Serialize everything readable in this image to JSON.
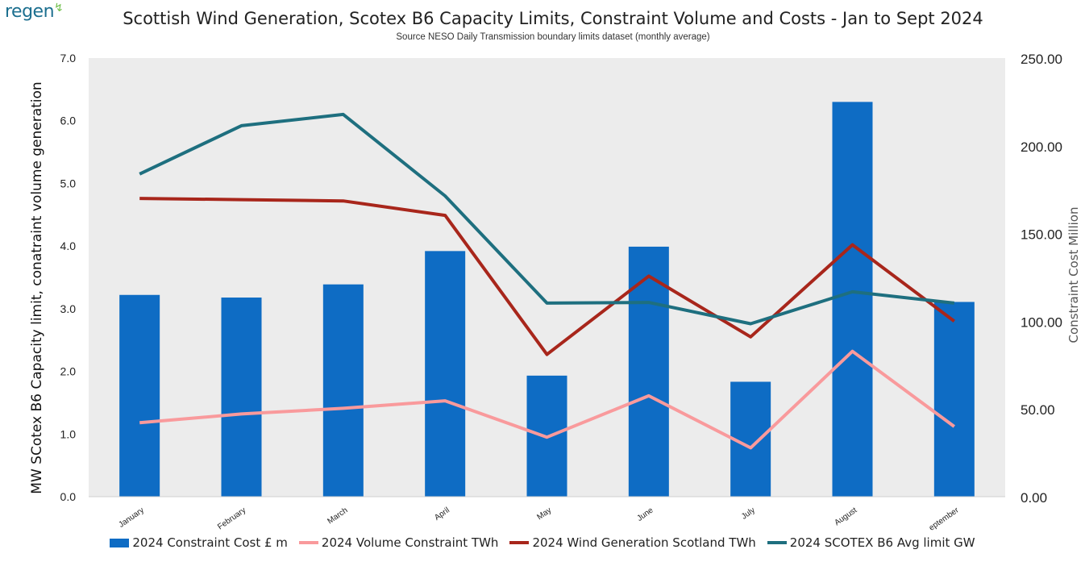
{
  "logo": {
    "text": "regen",
    "swirl": "↯"
  },
  "chart_data": {
    "type": "bar+line",
    "title": "Scottish Wind Generation, Scotex B6 Capacity Limits, Constraint Volume and Costs  - Jan to Sept 2024",
    "subtitle": "Source NESO Daily Transmission boundary limits dataset (monthly average)",
    "ylabel": "MW SCotex B6 Capacity limit, conatraint volume generation",
    "y2label": "Constraint Cost Million",
    "ylim": [
      0,
      7
    ],
    "y2lim": [
      0,
      250
    ],
    "yticks": [
      "0.0",
      "1.0",
      "2.0",
      "3.0",
      "4.0",
      "5.0",
      "6.0",
      "7.0"
    ],
    "y2ticks": [
      "0.00",
      "50.00",
      "100.00",
      "150.00",
      "200.00",
      "250.00"
    ],
    "categories": [
      "January",
      "February",
      "March",
      "April",
      "May",
      "June",
      "July",
      "August",
      "eptember"
    ],
    "bar_series": {
      "name": "2024 Constraint Cost £ m",
      "axis": "right",
      "color": "#0e6cc4",
      "values": [
        115,
        113.5,
        121,
        140,
        69,
        142.5,
        65.5,
        225,
        111
      ]
    },
    "line_series": [
      {
        "name": "2024 Volume Constraint TWh",
        "color": "#f99a9c",
        "values": [
          1.18,
          1.32,
          1.41,
          1.53,
          0.95,
          1.61,
          0.78,
          2.32,
          1.12
        ]
      },
      {
        "name": "2024 Wind Generation Scotland TWh",
        "color": "#a8261b",
        "values": [
          4.76,
          4.74,
          4.72,
          4.49,
          2.27,
          3.52,
          2.55,
          4.02,
          2.8
        ]
      },
      {
        "name": "2024 SCOTEX B6 Avg limit GW",
        "color": "#1e6f7f",
        "values": [
          5.15,
          5.92,
          6.1,
          4.8,
          3.09,
          3.1,
          2.76,
          3.27,
          3.09
        ]
      }
    ],
    "legend_position": "bottom",
    "grid": false
  }
}
